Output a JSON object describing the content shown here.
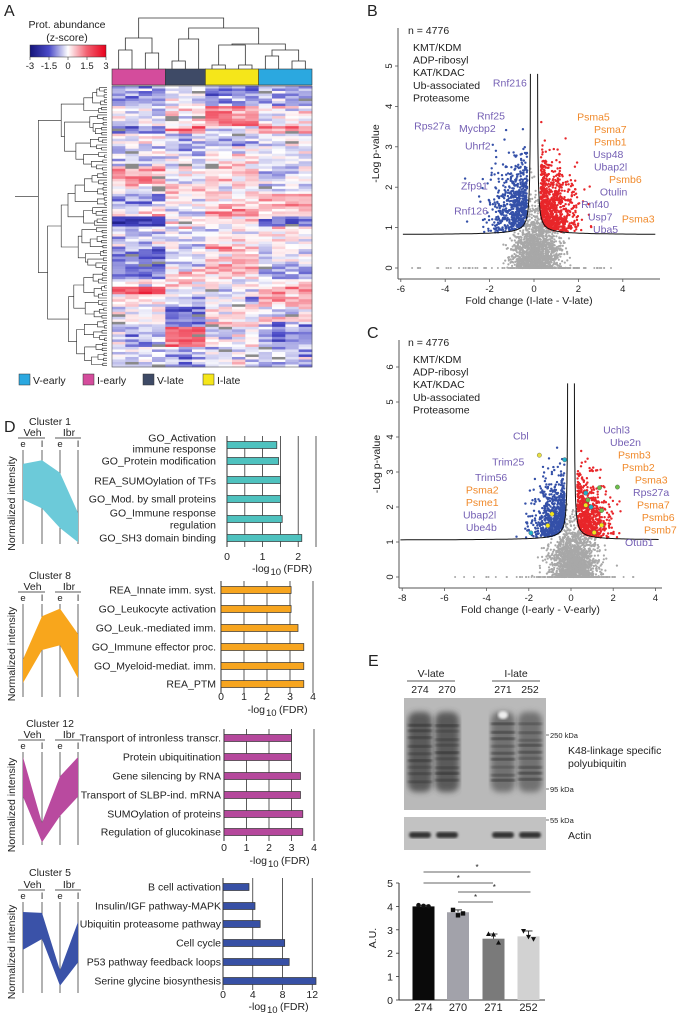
{
  "panel_labels": {
    "a": "A",
    "b": "B",
    "c": "C",
    "d": "D",
    "e": "E"
  },
  "heatmap": {
    "colorbar_title_1": "Prot. abundance",
    "colorbar_title_2": "(z-score)",
    "colorbar_ticks": [
      "-3",
      "-1.5",
      "0",
      "1.5",
      "3"
    ],
    "colorbar_colors": [
      "#14147a",
      "#4a4ac8",
      "#ffffff",
      "#f26070",
      "#e8001c"
    ],
    "column_groups": [
      {
        "name": "I-early",
        "color": "#d44c9c",
        "n": 4
      },
      {
        "name": "V-late",
        "color": "#3e4a66",
        "n": 3
      },
      {
        "name": "I-late",
        "color": "#f5e61a",
        "n": 4
      },
      {
        "name": "V-early",
        "color": "#2ba8e0",
        "n": 4
      }
    ],
    "legend": [
      {
        "label": "V-early",
        "color": "#2ba8e0"
      },
      {
        "label": "I-early",
        "color": "#d44c9c"
      },
      {
        "label": "V-late",
        "color": "#3e4a66"
      },
      {
        "label": "I-late",
        "color": "#f5e61a"
      }
    ]
  },
  "colors": {
    "up": "#e8262a",
    "down": "#3450a8",
    "ns": "#a8a8a8",
    "label_purple": "#7560b4",
    "label_orange": "#f08a2c"
  },
  "chart_data": [
    {
      "id": "volcano-b",
      "type": "scatter",
      "n_label": "n = 4776",
      "legend": [
        "KMT/KDM",
        "ADP-ribosyl",
        "KAT/KDAC",
        "Ub-associated",
        "Proteasome"
      ],
      "xlabel": "Fold change (I-late - V-late)",
      "ylabel": "-Log p-value",
      "xticks": [
        "-6",
        "-4",
        "-2",
        "0",
        "2",
        "4"
      ],
      "yticks": [
        "0",
        "1",
        "2",
        "3",
        "4",
        "5"
      ],
      "xlim": [
        -6.2,
        5.8
      ],
      "ylim": [
        0,
        5.9
      ],
      "labels": [
        {
          "text": "Rnf216",
          "x": -1.85,
          "y": 4.58,
          "c": "p"
        },
        {
          "text": "Rnf25",
          "x": -2.57,
          "y": 3.74,
          "c": "p"
        },
        {
          "text": "Rps27a",
          "x": -5.4,
          "y": 3.51,
          "c": "p"
        },
        {
          "text": "Mycbp2",
          "x": -3.38,
          "y": 3.47,
          "c": "p"
        },
        {
          "text": "Uhrf2",
          "x": -3.11,
          "y": 3.02,
          "c": "p"
        },
        {
          "text": "Zfp91",
          "x": -3.29,
          "y": 2.03,
          "c": "p"
        },
        {
          "text": "Rnf126",
          "x": -3.6,
          "y": 1.41,
          "c": "p"
        },
        {
          "text": "Psma5",
          "x": 1.94,
          "y": 3.64,
          "c": "o"
        },
        {
          "text": "Psma7",
          "x": 2.7,
          "y": 3.32,
          "c": "o"
        },
        {
          "text": "Psmb1",
          "x": 2.7,
          "y": 2.97,
          "c": "o"
        },
        {
          "text": "Usp48",
          "x": 2.66,
          "y": 2.72,
          "c": "p"
        },
        {
          "text": "Ubap2l",
          "x": 2.7,
          "y": 2.48,
          "c": "p"
        },
        {
          "text": "Psmb6",
          "x": 3.38,
          "y": 2.23,
          "c": "o"
        },
        {
          "text": "Otulin",
          "x": 2.97,
          "y": 1.98,
          "c": "p"
        },
        {
          "text": "Rnf40",
          "x": 2.12,
          "y": 1.68,
          "c": "p"
        },
        {
          "text": "Usp7",
          "x": 2.43,
          "y": 1.41,
          "c": "p"
        },
        {
          "text": "Psma3",
          "x": 3.96,
          "y": 1.21,
          "c": "o"
        },
        {
          "text": "Uba5",
          "x": 2.66,
          "y": 1.04,
          "c": "p"
        }
      ],
      "threshold_asymptote": 0.82
    },
    {
      "id": "volcano-c",
      "type": "scatter",
      "n_label": "n = 4776",
      "legend": [
        "KMT/KDM",
        "ADP-ribosyl",
        "KAT/KDAC",
        "Ub-associated",
        "Proteasome"
      ],
      "xlabel": "Fold change (I-early - V-early)",
      "ylabel": "-Log p-value",
      "xticks": [
        "-8",
        "-6",
        "-4",
        "-2",
        "0",
        "2",
        "4"
      ],
      "yticks": [
        "0",
        "1",
        "2",
        "3",
        "4",
        "5",
        "6"
      ],
      "xlim": [
        -8.1,
        4.3
      ],
      "ylim": [
        0,
        6.4
      ],
      "labels": [
        {
          "text": "Cbl",
          "x": -2.75,
          "y": 4.03,
          "c": "p"
        },
        {
          "text": "Uchl3",
          "x": 1.52,
          "y": 3.97,
          "c": "p"
        },
        {
          "text": "Ube2n",
          "x": 1.85,
          "y": 3.66,
          "c": "p"
        },
        {
          "text": "Psmb3",
          "x": 2.23,
          "y": 3.4,
          "c": "o"
        },
        {
          "text": "Psmb2",
          "x": 2.42,
          "y": 3.11,
          "c": "o"
        },
        {
          "text": "Trim25",
          "x": -3.74,
          "y": 3.29,
          "c": "p"
        },
        {
          "text": "Trim56",
          "x": -4.55,
          "y": 2.74,
          "c": "p"
        },
        {
          "text": "Psma3",
          "x": 3.03,
          "y": 2.69,
          "c": "o"
        },
        {
          "text": "Psma2",
          "x": -4.98,
          "y": 2.43,
          "c": "o"
        },
        {
          "text": "Rps27a",
          "x": 2.94,
          "y": 2.37,
          "c": "p"
        },
        {
          "text": "Psme1",
          "x": -4.98,
          "y": 2.14,
          "c": "o"
        },
        {
          "text": "Psma7",
          "x": 3.13,
          "y": 2.09,
          "c": "o"
        },
        {
          "text": "Psmb6",
          "x": 3.36,
          "y": 1.83,
          "c": "o"
        },
        {
          "text": "Ubap2l",
          "x": -5.12,
          "y": 1.83,
          "c": "p"
        },
        {
          "text": "Psmb7",
          "x": 3.46,
          "y": 1.51,
          "c": "o"
        },
        {
          "text": "Ube4b",
          "x": -4.98,
          "y": 1.49,
          "c": "p"
        },
        {
          "text": "Otub1",
          "x": 2.56,
          "y": 1.26,
          "c": "p"
        }
      ],
      "threshold_asymptote": 1.05
    },
    {
      "id": "cluster-1",
      "type": "bar",
      "title": "Cluster 1",
      "profile_groups": [
        "Veh",
        "Ibr"
      ],
      "profile_points": [
        "e",
        "l",
        "e",
        "l"
      ],
      "profile_ylabel": "Normalized intensity",
      "profile_upper": [
        0.9,
        0.94,
        0.8,
        0.35
      ],
      "profile_lower": [
        0.5,
        0.4,
        0.18,
        0.02
      ],
      "color": "#4ec2bf",
      "profile_color": "#6ccad9",
      "categories": [
        [
          "GO_Activation",
          "immune response"
        ],
        [
          "GO_Protein modification"
        ],
        [
          "REA_SUMOylation of TFs"
        ],
        [
          "GO_Mod. by small proteins"
        ],
        [
          "GO_Immune response",
          "regulation"
        ],
        [
          "GO_SH3 domain binding"
        ]
      ],
      "values": [
        1.4,
        1.45,
        1.5,
        1.5,
        1.55,
        2.1
      ],
      "xlabel": "-log",
      "xlabel_sub": "10",
      "xlabel_end": "(FDR)",
      "xticks": [
        "0",
        "1",
        "2"
      ],
      "xlim": [
        0,
        2.5
      ],
      "grid_step": 0.5
    },
    {
      "id": "cluster-8",
      "type": "bar",
      "title": "Cluster 8",
      "profile_groups": [
        "Veh",
        "Ibr"
      ],
      "profile_points": [
        "e",
        "l",
        "e",
        "l"
      ],
      "profile_ylabel": "Normalized intensity",
      "profile_upper": [
        0.4,
        0.86,
        0.94,
        0.67
      ],
      "profile_lower": [
        0.15,
        0.5,
        0.55,
        0.2
      ],
      "color": "#f7a51f",
      "profile_color": "#f8a61c",
      "categories": [
        [
          "REA_Innate imm. syst."
        ],
        [
          "GO_Leukocyte activation"
        ],
        [
          "GO_Leuk.-mediated imm."
        ],
        [
          "GO_Immune effector proc."
        ],
        [
          "GO_Myeloid-mediat. imm."
        ],
        [
          "REA_PTM"
        ]
      ],
      "values": [
        3.05,
        3.05,
        3.35,
        3.6,
        3.6,
        3.6
      ],
      "xlabel": "-log",
      "xlabel_sub": "10",
      "xlabel_end": "(FDR)",
      "xticks": [
        "0",
        "1",
        "2",
        "3",
        "4"
      ],
      "xlim": [
        0,
        4
      ],
      "grid_step": 1
    },
    {
      "id": "cluster-12",
      "type": "bar",
      "title": "Cluster 12",
      "profile_groups": [
        "Veh",
        "Ibr"
      ],
      "profile_points": [
        "e",
        "l",
        "e",
        "l"
      ],
      "profile_ylabel": "Normalized intensity",
      "profile_upper": [
        1.0,
        0.25,
        0.78,
        1.0
      ],
      "profile_lower": [
        0.55,
        0.03,
        0.33,
        0.55
      ],
      "color": "#b5489c",
      "profile_color": "#b94a9f",
      "categories": [
        [
          "Transport of intronless transcr."
        ],
        [
          "Protein ubiquitination"
        ],
        [
          "Gene silencing by RNA"
        ],
        [
          "Transport of SLBP-ind. mRNA"
        ],
        [
          "SUMOylation of proteins"
        ],
        [
          "Regulation of glucokinase"
        ]
      ],
      "values": [
        3.0,
        3.0,
        3.4,
        3.4,
        3.5,
        3.5
      ],
      "xlabel": "-log",
      "xlabel_sub": "10",
      "xlabel_end": "(FDR)",
      "xticks": [
        "0",
        "1",
        "2",
        "3",
        "4"
      ],
      "xlim": [
        0,
        4
      ],
      "grid_step": 1
    },
    {
      "id": "cluster-5",
      "type": "bar",
      "title": "Cluster 5",
      "profile_groups": [
        "Veh",
        "Ibr"
      ],
      "profile_points": [
        "e",
        "l",
        "e",
        "l"
      ],
      "profile_ylabel": "Normalized intensity",
      "profile_upper": [
        0.9,
        0.89,
        0.25,
        0.79
      ],
      "profile_lower": [
        0.48,
        0.6,
        0.08,
        0.34
      ],
      "color": "#3750a5",
      "profile_color": "#3a52a8",
      "categories": [
        [
          "B cell activation"
        ],
        [
          "Insulin/IGF pathway-MAPK"
        ],
        [
          "Ubiquitin proteasome pathway"
        ],
        [
          "Cell cycle"
        ],
        [
          "P53 pathway feedback loops"
        ],
        [
          "Serine glycine biosynthesis"
        ]
      ],
      "values": [
        3.5,
        4.3,
        5.0,
        8.3,
        8.9,
        12.5
      ],
      "xlabel": "-log",
      "xlabel_sub": "10",
      "xlabel_end": "(FDR)",
      "xticks": [
        "0",
        "4",
        "8",
        "12"
      ],
      "xlim": [
        0,
        12.2
      ],
      "grid_step": 4
    },
    {
      "id": "au-bar",
      "type": "bar",
      "categories": [
        "274",
        "270",
        "271",
        "252"
      ],
      "values": [
        4.0,
        3.75,
        2.62,
        2.72
      ],
      "points": [
        [
          4.05,
          4.02,
          4.0
        ],
        [
          3.85,
          3.62,
          3.7
        ],
        [
          2.82,
          2.8,
          2.45
        ],
        [
          2.95,
          2.7,
          2.6
        ]
      ],
      "markers": [
        "circle",
        "square",
        "triangle",
        "triangle-down"
      ],
      "colors": [
        "#0a0a0a",
        "#a2a2aa",
        "#7a7a7a",
        "#d2d2d2"
      ],
      "ylabel": "A.U.",
      "yticks": [
        "0",
        "1",
        "2",
        "3",
        "4",
        "5"
      ],
      "ylim": [
        0,
        5
      ],
      "significance": [
        {
          "from": "274",
          "to": "252",
          "label": "*"
        },
        {
          "from": "274",
          "to": "271",
          "label": "*"
        },
        {
          "from": "270",
          "to": "252",
          "label": "*"
        },
        {
          "from": "270",
          "to": "271",
          "label": "*"
        }
      ]
    }
  ],
  "western_blot": {
    "groups": [
      {
        "label": "V-late"
      },
      {
        "label": "I-late"
      }
    ],
    "lanes": [
      "274",
      "270",
      "271",
      "252"
    ],
    "markers": [
      "250 kDa",
      "95 kDa",
      "55 kDa"
    ],
    "blot_label_1": "K48-linkage specific",
    "blot_label_2": "polyubiquitin",
    "loading_label": "Actin"
  }
}
